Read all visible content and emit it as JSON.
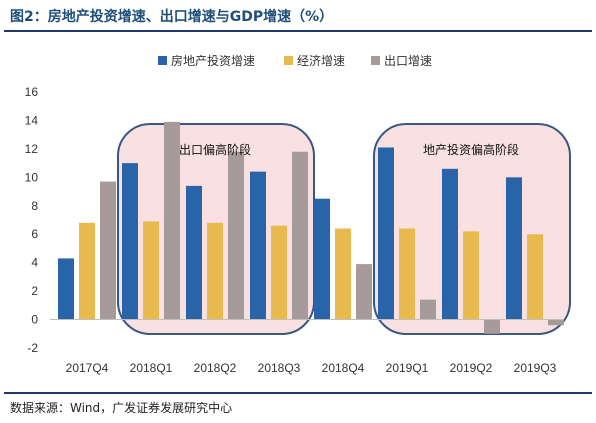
{
  "title": "图2：房地产投资增速、出口增速与GDP增速（%）",
  "source": "数据来源：Wind，广发证券发展研究中心",
  "colors": {
    "real_estate": "#2a64a8",
    "gdp": "#e8b94c",
    "export": "#a69a9a",
    "highlight_fill": "#f9e1e1",
    "highlight_border": "#3b5680"
  },
  "chart_data": {
    "type": "bar",
    "title": "房地产投资增速、出口增速与GDP增速（%）",
    "categories": [
      "2017Q4",
      "2018Q1",
      "2018Q2",
      "2018Q3",
      "2018Q4",
      "2019Q1",
      "2019Q2",
      "2019Q3"
    ],
    "series": [
      {
        "name": "房地产投资增速",
        "values": [
          4.3,
          11.0,
          9.4,
          10.4,
          8.5,
          12.1,
          10.6,
          10.0
        ]
      },
      {
        "name": "经济增速",
        "values": [
          6.8,
          6.9,
          6.8,
          6.6,
          6.4,
          6.4,
          6.2,
          6.0
        ]
      },
      {
        "name": "出口增速",
        "values": [
          9.7,
          13.9,
          11.8,
          11.8,
          3.9,
          1.4,
          -1.0,
          -0.4
        ]
      }
    ],
    "yticks": [
      -2,
      0,
      2,
      4,
      6,
      8,
      10,
      12,
      14,
      16
    ],
    "ylim": [
      -2,
      16
    ],
    "legend_position": "top",
    "grid": false,
    "annotations": [
      {
        "text": "出口偏高阶段",
        "from": "2018Q1",
        "to": "2018Q3"
      },
      {
        "text": "地产投资偏高阶段",
        "from": "2019Q1",
        "to": "2019Q3"
      }
    ]
  }
}
